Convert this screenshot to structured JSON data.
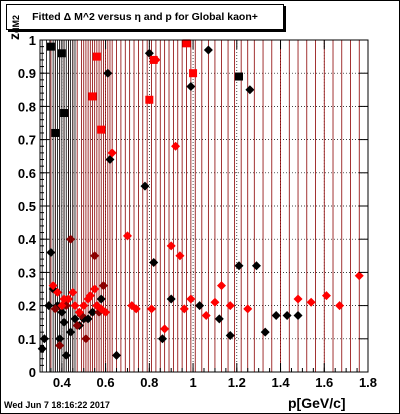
{
  "title": "Fitted Δ M^2 versus η and p for Global kaon+",
  "timestamp": "Wed Jun  7 18:16:22 2017",
  "chart_data": {
    "type": "scatter",
    "title": "Fitted Δ M^2 versus η and p for Global kaon+",
    "xlabel": "p[GeV/c]",
    "ylabel_main": "z",
    "ylabel_sub": "dM2",
    "xlim": [
      0.3,
      1.8
    ],
    "ylim": [
      0,
      1.0
    ],
    "x_ticks": [
      0.4,
      0.6,
      0.8,
      1.0,
      1.2,
      1.4,
      1.6,
      1.8
    ],
    "x_tick_labels": [
      "0.4",
      "0.6",
      "0.8",
      "1",
      "1.2",
      "1.4",
      "1.6",
      "1.8"
    ],
    "y_ticks": [
      0,
      0.1,
      0.2,
      0.3,
      0.4,
      0.5,
      0.6,
      0.7,
      0.8,
      0.9,
      1.0
    ],
    "y_tick_labels": [
      "0",
      "0.1",
      "0.2",
      "0.3",
      "0.4",
      "0.5",
      "0.6",
      "0.7",
      "0.8",
      "0.9",
      "1"
    ],
    "grid": true,
    "colors": {
      "black": "#000000",
      "red": "#ff0000",
      "dark_red": "#8b0000"
    },
    "black_lines_x": [
      0.31,
      0.33,
      0.345,
      0.36,
      0.37,
      0.38,
      0.39,
      0.4,
      0.41,
      0.42,
      0.43,
      0.44,
      0.45,
      0.46
    ],
    "red_lines_x": [
      0.35,
      0.37,
      0.39,
      0.41,
      0.43,
      0.45,
      0.47,
      0.49,
      0.5,
      0.51,
      0.52,
      0.53,
      0.54,
      0.55,
      0.56,
      0.57,
      0.58,
      0.59,
      0.6,
      0.61,
      0.62,
      0.63,
      0.65,
      0.67,
      0.69,
      0.71,
      0.73,
      0.75,
      0.77,
      0.79,
      0.81,
      0.83,
      0.85,
      0.87,
      0.89,
      0.91,
      0.93,
      0.95,
      0.97,
      0.99,
      1.01,
      1.04,
      1.07,
      1.1,
      1.13,
      1.16,
      1.19,
      1.22,
      1.25,
      1.28,
      1.32,
      1.36,
      1.4,
      1.44,
      1.48,
      1.52,
      1.56,
      1.6,
      1.64,
      1.68,
      1.72,
      1.76
    ],
    "series": [
      {
        "marker": "diamond",
        "color": "black",
        "points": [
          [
            0.31,
            0.07
          ],
          [
            0.32,
            0.1
          ],
          [
            0.34,
            0.2
          ],
          [
            0.35,
            0.36
          ],
          [
            0.36,
            0.25
          ],
          [
            0.38,
            0.2
          ],
          [
            0.39,
            0.1
          ],
          [
            0.4,
            0.18
          ],
          [
            0.41,
            0.15
          ],
          [
            0.42,
            0.05
          ],
          [
            0.44,
            0.12
          ],
          [
            0.46,
            0.16
          ],
          [
            0.48,
            0.14
          ],
          [
            0.5,
            0.16
          ],
          [
            0.52,
            0.16
          ],
          [
            0.54,
            0.18
          ],
          [
            0.56,
            0.2
          ],
          [
            0.58,
            0.22
          ],
          [
            0.62,
            0.64
          ],
          [
            0.61,
            0.9
          ],
          [
            0.65,
            0.05
          ],
          [
            0.78,
            0.56
          ],
          [
            0.8,
            0.96
          ],
          [
            0.82,
            0.33
          ],
          [
            0.86,
            0.1
          ],
          [
            0.9,
            0.22
          ],
          [
            0.99,
            0.86
          ],
          [
            1.03,
            0.2
          ],
          [
            1.07,
            0.97
          ],
          [
            1.12,
            0.16
          ],
          [
            1.17,
            0.11
          ],
          [
            1.21,
            0.32
          ],
          [
            1.26,
            0.85
          ],
          [
            1.29,
            0.32
          ],
          [
            1.33,
            0.12
          ],
          [
            1.38,
            0.17
          ],
          [
            1.43,
            0.17
          ],
          [
            1.48,
            0.17
          ]
        ]
      },
      {
        "marker": "square",
        "color": "black",
        "points": [
          [
            0.35,
            0.98
          ],
          [
            0.37,
            0.72
          ],
          [
            0.4,
            0.96
          ],
          [
            0.41,
            0.78
          ],
          [
            1.21,
            0.89
          ]
        ]
      },
      {
        "marker": "diamond",
        "color": "dark_red",
        "points": [
          [
            0.37,
            0.19
          ],
          [
            0.39,
            0.08
          ],
          [
            0.42,
            0.2
          ],
          [
            0.44,
            0.4
          ],
          [
            0.47,
            0.14
          ],
          [
            0.49,
            0.17
          ],
          [
            0.51,
            0.1
          ],
          [
            0.55,
            0.35
          ],
          [
            0.57,
            0.18
          ],
          [
            0.59,
            0.26
          ]
        ]
      },
      {
        "marker": "diamond",
        "color": "red",
        "points": [
          [
            0.36,
            0.26
          ],
          [
            0.38,
            0.24
          ],
          [
            0.4,
            0.2
          ],
          [
            0.41,
            0.22
          ],
          [
            0.43,
            0.22
          ],
          [
            0.45,
            0.24
          ],
          [
            0.46,
            0.2
          ],
          [
            0.48,
            0.18
          ],
          [
            0.5,
            0.2
          ],
          [
            0.52,
            0.22
          ],
          [
            0.53,
            0.23
          ],
          [
            0.55,
            0.25
          ],
          [
            0.56,
            0.2
          ],
          [
            0.58,
            0.19
          ],
          [
            0.6,
            0.18
          ],
          [
            0.63,
            0.66
          ],
          [
            0.7,
            0.41
          ],
          [
            0.72,
            0.2
          ],
          [
            0.74,
            0.19
          ],
          [
            0.81,
            0.19
          ],
          [
            0.83,
            0.94
          ],
          [
            0.87,
            0.13
          ],
          [
            0.9,
            0.38
          ],
          [
            0.92,
            0.68
          ],
          [
            0.94,
            0.35
          ],
          [
            0.96,
            0.19
          ],
          [
            0.99,
            0.22
          ],
          [
            1.06,
            0.17
          ],
          [
            1.1,
            0.21
          ],
          [
            1.13,
            0.26
          ],
          [
            1.17,
            0.2
          ],
          [
            1.25,
            0.19
          ],
          [
            1.48,
            0.22
          ],
          [
            1.54,
            0.21
          ],
          [
            1.61,
            0.23
          ],
          [
            1.67,
            0.2
          ],
          [
            1.76,
            0.29
          ]
        ]
      },
      {
        "marker": "square",
        "color": "red",
        "points": [
          [
            0.54,
            0.83
          ],
          [
            0.56,
            0.95
          ],
          [
            0.58,
            0.73
          ],
          [
            0.8,
            0.82
          ],
          [
            0.82,
            0.94
          ],
          [
            0.97,
            0.99
          ],
          [
            1.0,
            0.9
          ]
        ]
      }
    ]
  }
}
